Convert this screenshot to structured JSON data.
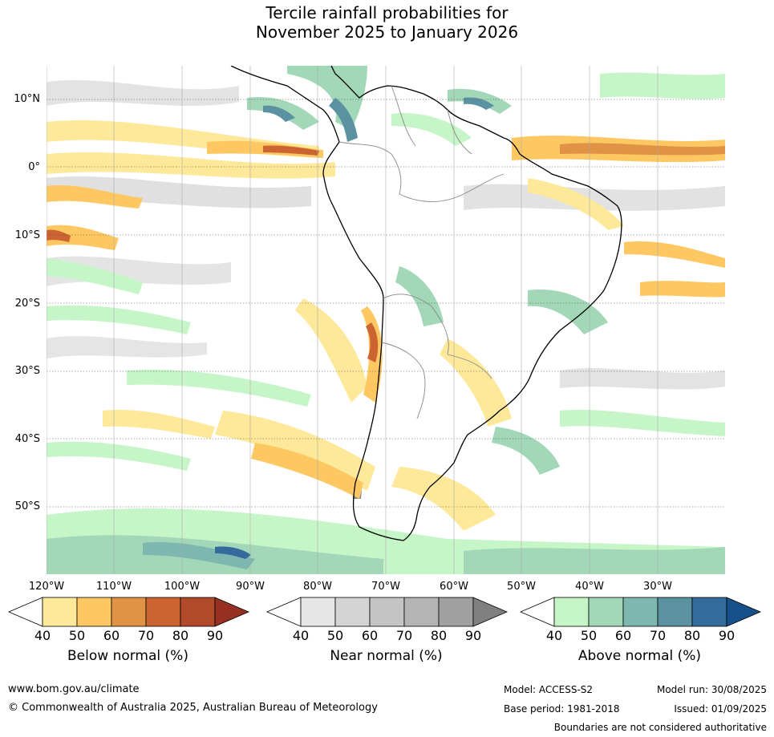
{
  "title_line1": "Tercile rainfall probabilities for",
  "title_line2": "November 2025 to January 2026",
  "lat_labels": [
    "10°N",
    "0°",
    "10°S",
    "20°S",
    "30°S",
    "40°S",
    "50°S"
  ],
  "lon_labels": [
    "120°W",
    "110°W",
    "100°W",
    "90°W",
    "80°W",
    "70°W",
    "60°W",
    "50°W",
    "40°W",
    "30°W"
  ],
  "colorbars": [
    {
      "title": "Below normal (%)",
      "ticks": [
        "40",
        "50",
        "60",
        "70",
        "80",
        "90"
      ],
      "colors": [
        "#ffffff",
        "#fee99a",
        "#fdc862",
        "#e09245",
        "#cc6432",
        "#b04a2a",
        "#963020"
      ]
    },
    {
      "title": "Near normal (%)",
      "ticks": [
        "40",
        "50",
        "60",
        "70",
        "80",
        "90"
      ],
      "colors": [
        "#ffffff",
        "#e6e6e6",
        "#d4d4d4",
        "#c4c4c4",
        "#b4b4b4",
        "#a0a0a0",
        "#808080"
      ]
    },
    {
      "title": "Above normal (%)",
      "ticks": [
        "40",
        "50",
        "60",
        "70",
        "80",
        "90"
      ],
      "colors": [
        "#ffffff",
        "#c6f5c8",
        "#a2d8b8",
        "#7eb6b0",
        "#5a92a2",
        "#346a9c",
        "#17508a"
      ]
    }
  ],
  "footer": {
    "website": "www.bom.gov.au/climate",
    "copyright": "© Commonwealth of Australia 2025, Australian Bureau of Meteorology",
    "model": "Model: ACCESS-S2",
    "base_period": "Base period: 1981-2018",
    "model_run": "Model run: 30/08/2025",
    "issued": "Issued: 01/09/2025",
    "disclaimer": "Boundaries are not considered authoritative"
  }
}
